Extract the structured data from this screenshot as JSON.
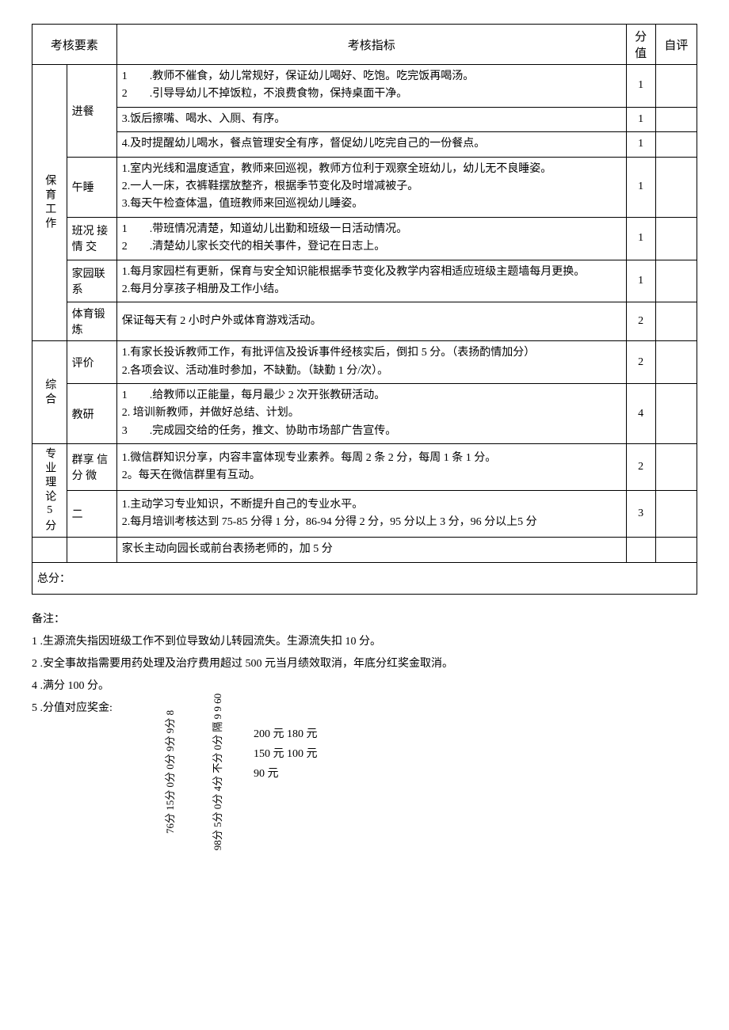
{
  "headers": {
    "element": "考核要素",
    "indicator": "考核指标",
    "score": "分值",
    "self": "自评"
  },
  "groups": [
    {
      "name": "保育工作",
      "items": [
        {
          "name": "进餐",
          "rows": [
            {
              "text": "1　　.教师不催食，幼儿常规好，保证幼儿喝好、吃饱。吃完饭再喝汤。\n2　　.引导导幼儿不掉饭粒，不浪费食物，保持桌面干净。",
              "score": "1"
            },
            {
              "text": "3.饭后擦嘴、喝水、入厕、有序。",
              "score": "1"
            },
            {
              "text": "4.及时提醒幼儿喝水，餐点管理安全有序，督促幼儿吃完自己的一份餐点。",
              "score": "1"
            }
          ]
        },
        {
          "name": "午睡",
          "rows": [
            {
              "text": "1.室内光线和温度适宜，教师来回巡视，教师方位利于观察全班幼儿，幼儿无不良睡姿。\n2.一人一床，衣裤鞋摆放整齐，根据季节变化及时增减被子。\n3.每天午检查体温，值班教师来回巡视幼儿睡姿。",
              "score": "1"
            }
          ]
        },
        {
          "name": "班况 接情 交",
          "rows": [
            {
              "text": "1　　.带班情况清楚，知道幼儿出勤和班级一日活动情况。\n2　　.清楚幼儿家长交代的相关事件，登记在日志上。",
              "score": "1"
            }
          ]
        },
        {
          "name": "家园联系",
          "rows": [
            {
              "text": "1.每月家园栏有更新，保育与安全知识能根据季节变化及教学内容相适应班级主题墙每月更换。\n2.每月分享孩子相册及工作小结。",
              "score": "1"
            }
          ]
        },
        {
          "name": "体育锻炼",
          "rows": [
            {
              "text": "保证每天有 2 小时户外或体育游戏活动。",
              "score": "2"
            }
          ]
        }
      ]
    },
    {
      "name": "综合",
      "items": [
        {
          "name": "评价",
          "rows": [
            {
              "text": "1.有家长投诉教师工作，有批评信及投诉事件经核实后，倒扣 5 分。（表扬酌情加分）\n2.各项会议、活动准时参加，不缺勤。（缺勤 1 分/次）。",
              "score": "2"
            }
          ]
        },
        {
          "name": "教研",
          "rows": [
            {
              "text": "1　　.给教师以正能量，每月最少 2 次开张教研活动。\n2. 培训新教师，并做好总结、计划。\n3　　.完成园交给的任务，推文、协助市场部广告宣传。",
              "score": "4"
            }
          ]
        }
      ]
    },
    {
      "name": "专业理论5分",
      "items": [
        {
          "name": "群享 信分 微",
          "rows": [
            {
              "text": "1.微信群知识分享，内容丰富体现专业素养。每周 2 条 2 分，每周 1 条 1 分。\n2。每天在微信群里有互动。",
              "score": "2"
            }
          ]
        },
        {
          "name": "二",
          "rows": [
            {
              "text": "1.主动学习专业知识，不断提升自己的专业水平。\n2.每月培训考核达到 75-85 分得 1 分，86-94 分得 2 分，95 分以上 3 分，96 分以上5 分",
              "score": "3"
            }
          ]
        }
      ]
    }
  ],
  "extra_row": "家长主动向园长或前台表扬老师的，加 5 分",
  "total": "总分：",
  "notes_title": "备注：",
  "notes": [
    "1 .生源流失指因班级工作不到位导致幼儿转园流失。生源流失扣 10 分。",
    "2 .安全事故指需要用药处理及治疗费用超过 500 元当月绩效取消，年底分红奖金取消。",
    "4 .满分 100 分。",
    "5 .分值对应奖金:"
  ],
  "bonus": {
    "col1": "76分 15分 0分 0分 9分 9分 8",
    "col2": "98分 5分 0分 4分 不分 0分 隔 9 9 60",
    "amounts": [
      "200 元 180 元",
      "150 元 100 元",
      "90 元"
    ]
  },
  "colwidths": {
    "c1": "40",
    "c2": "58",
    "c3": "590",
    "c4": "34",
    "c5": "48"
  }
}
